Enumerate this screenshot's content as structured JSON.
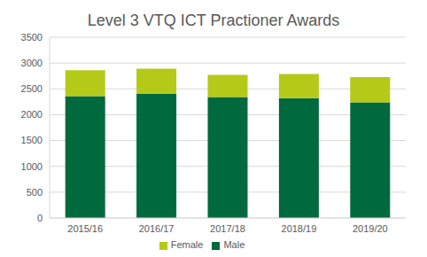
{
  "chart_data": {
    "type": "bar",
    "title": "Level 3 VTQ ICT Practioner Awards",
    "categories": [
      "2015/16",
      "2016/17",
      "2017/18",
      "2018/19",
      "2019/20"
    ],
    "series": [
      {
        "name": "Male",
        "color": "#00693e",
        "values": [
          2360,
          2400,
          2340,
          2320,
          2240
        ]
      },
      {
        "name": "Female",
        "color": "#b5c918",
        "values": [
          500,
          490,
          430,
          470,
          490
        ]
      }
    ],
    "stacked": true,
    "ylim": [
      0,
      3500
    ],
    "yticks": [
      0,
      500,
      1000,
      1500,
      2000,
      2500,
      3000,
      3500
    ],
    "grid": true,
    "legend": "bottom"
  }
}
